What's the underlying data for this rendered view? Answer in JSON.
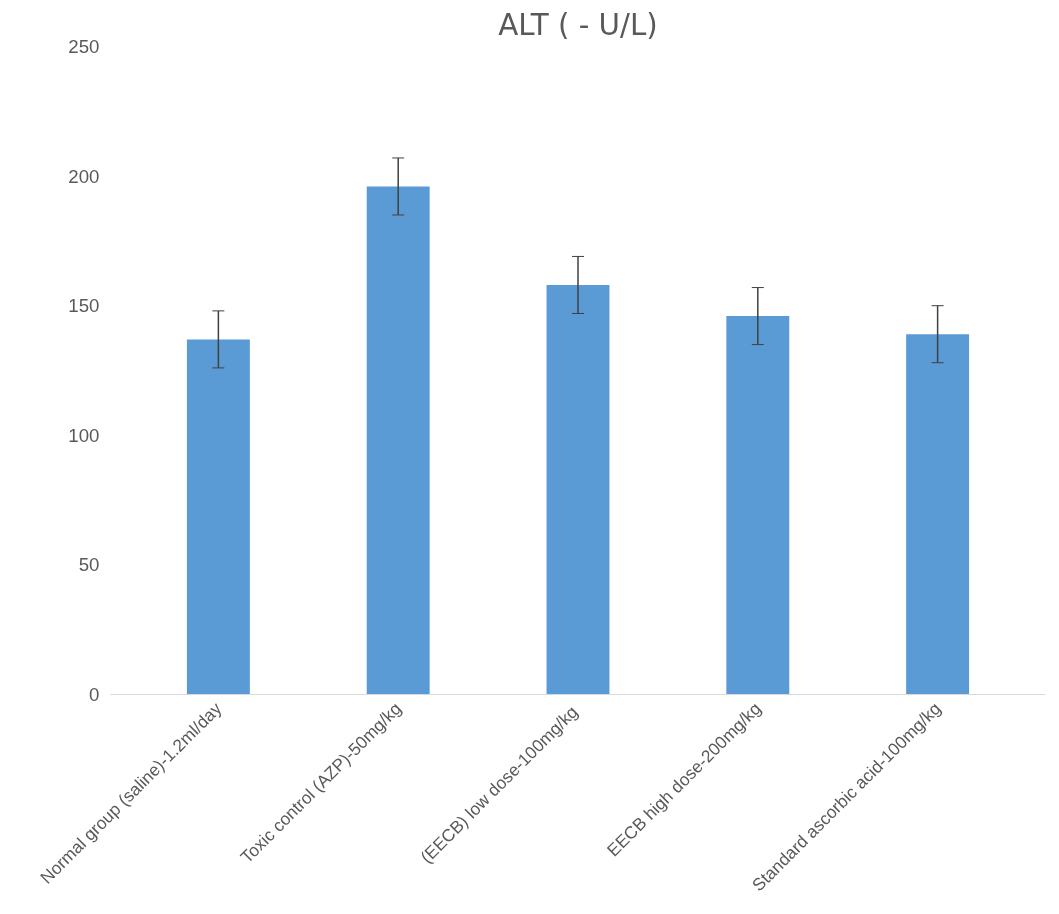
{
  "chart_data": {
    "type": "bar",
    "title": "ALT ( - U/L)",
    "categories": [
      "Normal group (saline)-1.2ml/day",
      "Toxic control (AZP)-50mg/kg",
      "(EECB)  low dose-100mg/kg",
      "EECB high dose-200mg/kg",
      "Standard ascorbic acid-100mg/kg"
    ],
    "values": [
      137,
      196,
      158,
      146,
      139
    ],
    "errors": [
      11,
      11,
      11,
      11,
      11
    ],
    "color": "#5b9bd5",
    "ylim": [
      0,
      250
    ],
    "yticks": [
      0,
      50,
      100,
      150,
      200,
      250
    ],
    "grid": false
  }
}
